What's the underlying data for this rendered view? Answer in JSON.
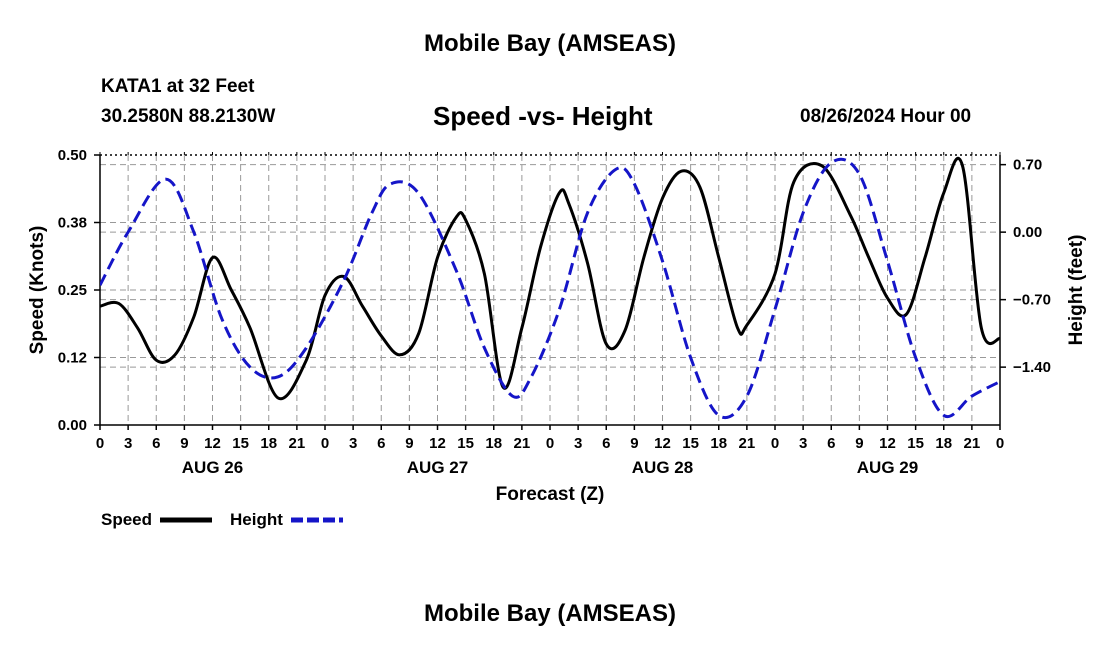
{
  "title": "Mobile Bay (AMSEAS)",
  "footer_title": "Mobile Bay (AMSEAS)",
  "station": {
    "name": "KATA1 at 32 Feet",
    "coords": "30.2580N  88.2130W"
  },
  "run_time": "08/26/2024 Hour 00",
  "colors": {
    "speed": "#000000",
    "height": "#1515c8",
    "grid": "#999999"
  },
  "chart_data": {
    "type": "line",
    "title": "Speed -vs- Height",
    "xlabel": "Forecast (Z)",
    "ylabel_left": "Speed (Knots)",
    "ylabel_right": "Height (feet)",
    "x_unit": "forecast hour from 08/26/2024 00Z",
    "xlim": [
      0,
      96
    ],
    "x_tick_labels": [
      "0",
      "3",
      "6",
      "9",
      "12",
      "15",
      "18",
      "21",
      "0",
      "3",
      "6",
      "9",
      "12",
      "15",
      "18",
      "21",
      "0",
      "3",
      "6",
      "9",
      "12",
      "15",
      "18",
      "21",
      "0",
      "3",
      "6",
      "9",
      "12",
      "15",
      "18",
      "21",
      "0"
    ],
    "date_labels": [
      "AUG 26",
      "AUG 27",
      "AUG 28",
      "AUG 29"
    ],
    "y_left": {
      "lim": [
        0,
        0.5
      ],
      "ticks": [
        0.0,
        0.125,
        0.25,
        0.375,
        0.5
      ],
      "tick_labels": [
        "0.00",
        "0.12",
        "0.25",
        "0.38",
        "0.50"
      ]
    },
    "y_right": {
      "lim": [
        -2.0,
        0.8
      ],
      "ticks": [
        -1.4,
        -0.7,
        0.0,
        0.7
      ],
      "tick_labels": [
        "−1.40",
        "−0.70",
        "0.00",
        "0.70"
      ]
    },
    "grid": true,
    "legend": "bottom-left",
    "series": [
      {
        "name": "Speed",
        "axis": "left",
        "style": "solid",
        "x": [
          0,
          2,
          4,
          6,
          8,
          10,
          12,
          14,
          16,
          19,
          22,
          24,
          26,
          28,
          30,
          32,
          34,
          36,
          38,
          39,
          41,
          43,
          45,
          47,
          49,
          50,
          52,
          54,
          56,
          58,
          60,
          62,
          64,
          66,
          68,
          69,
          72,
          74,
          77,
          80,
          82,
          84,
          86,
          88,
          90,
          92,
          94,
          96
        ],
        "y": [
          0.22,
          0.225,
          0.18,
          0.12,
          0.13,
          0.2,
          0.31,
          0.25,
          0.18,
          0.05,
          0.12,
          0.24,
          0.275,
          0.22,
          0.165,
          0.13,
          0.17,
          0.31,
          0.385,
          0.38,
          0.28,
          0.07,
          0.18,
          0.33,
          0.43,
          0.41,
          0.3,
          0.15,
          0.175,
          0.31,
          0.42,
          0.47,
          0.44,
          0.31,
          0.18,
          0.185,
          0.28,
          0.45,
          0.48,
          0.39,
          0.31,
          0.235,
          0.205,
          0.31,
          0.43,
          0.48,
          0.18,
          0.16
        ]
      },
      {
        "name": "Height",
        "axis": "right",
        "style": "dashed",
        "x": [
          0,
          3,
          7,
          10,
          13,
          16,
          19,
          22,
          26,
          29,
          31,
          34,
          38,
          41,
          44,
          46,
          49,
          52,
          55,
          57,
          60,
          63,
          66,
          69,
          72,
          75,
          78,
          81,
          84,
          87,
          90,
          93,
          96
        ],
        "y": [
          -0.55,
          0.0,
          0.55,
          0.0,
          -0.9,
          -1.4,
          -1.5,
          -1.2,
          -0.5,
          0.2,
          0.5,
          0.4,
          -0.4,
          -1.2,
          -1.7,
          -1.5,
          -0.8,
          0.2,
          0.65,
          0.5,
          -0.3,
          -1.3,
          -1.9,
          -1.7,
          -0.8,
          0.2,
          0.72,
          0.6,
          -0.3,
          -1.3,
          -1.9,
          -1.7,
          -1.55
        ]
      }
    ]
  }
}
